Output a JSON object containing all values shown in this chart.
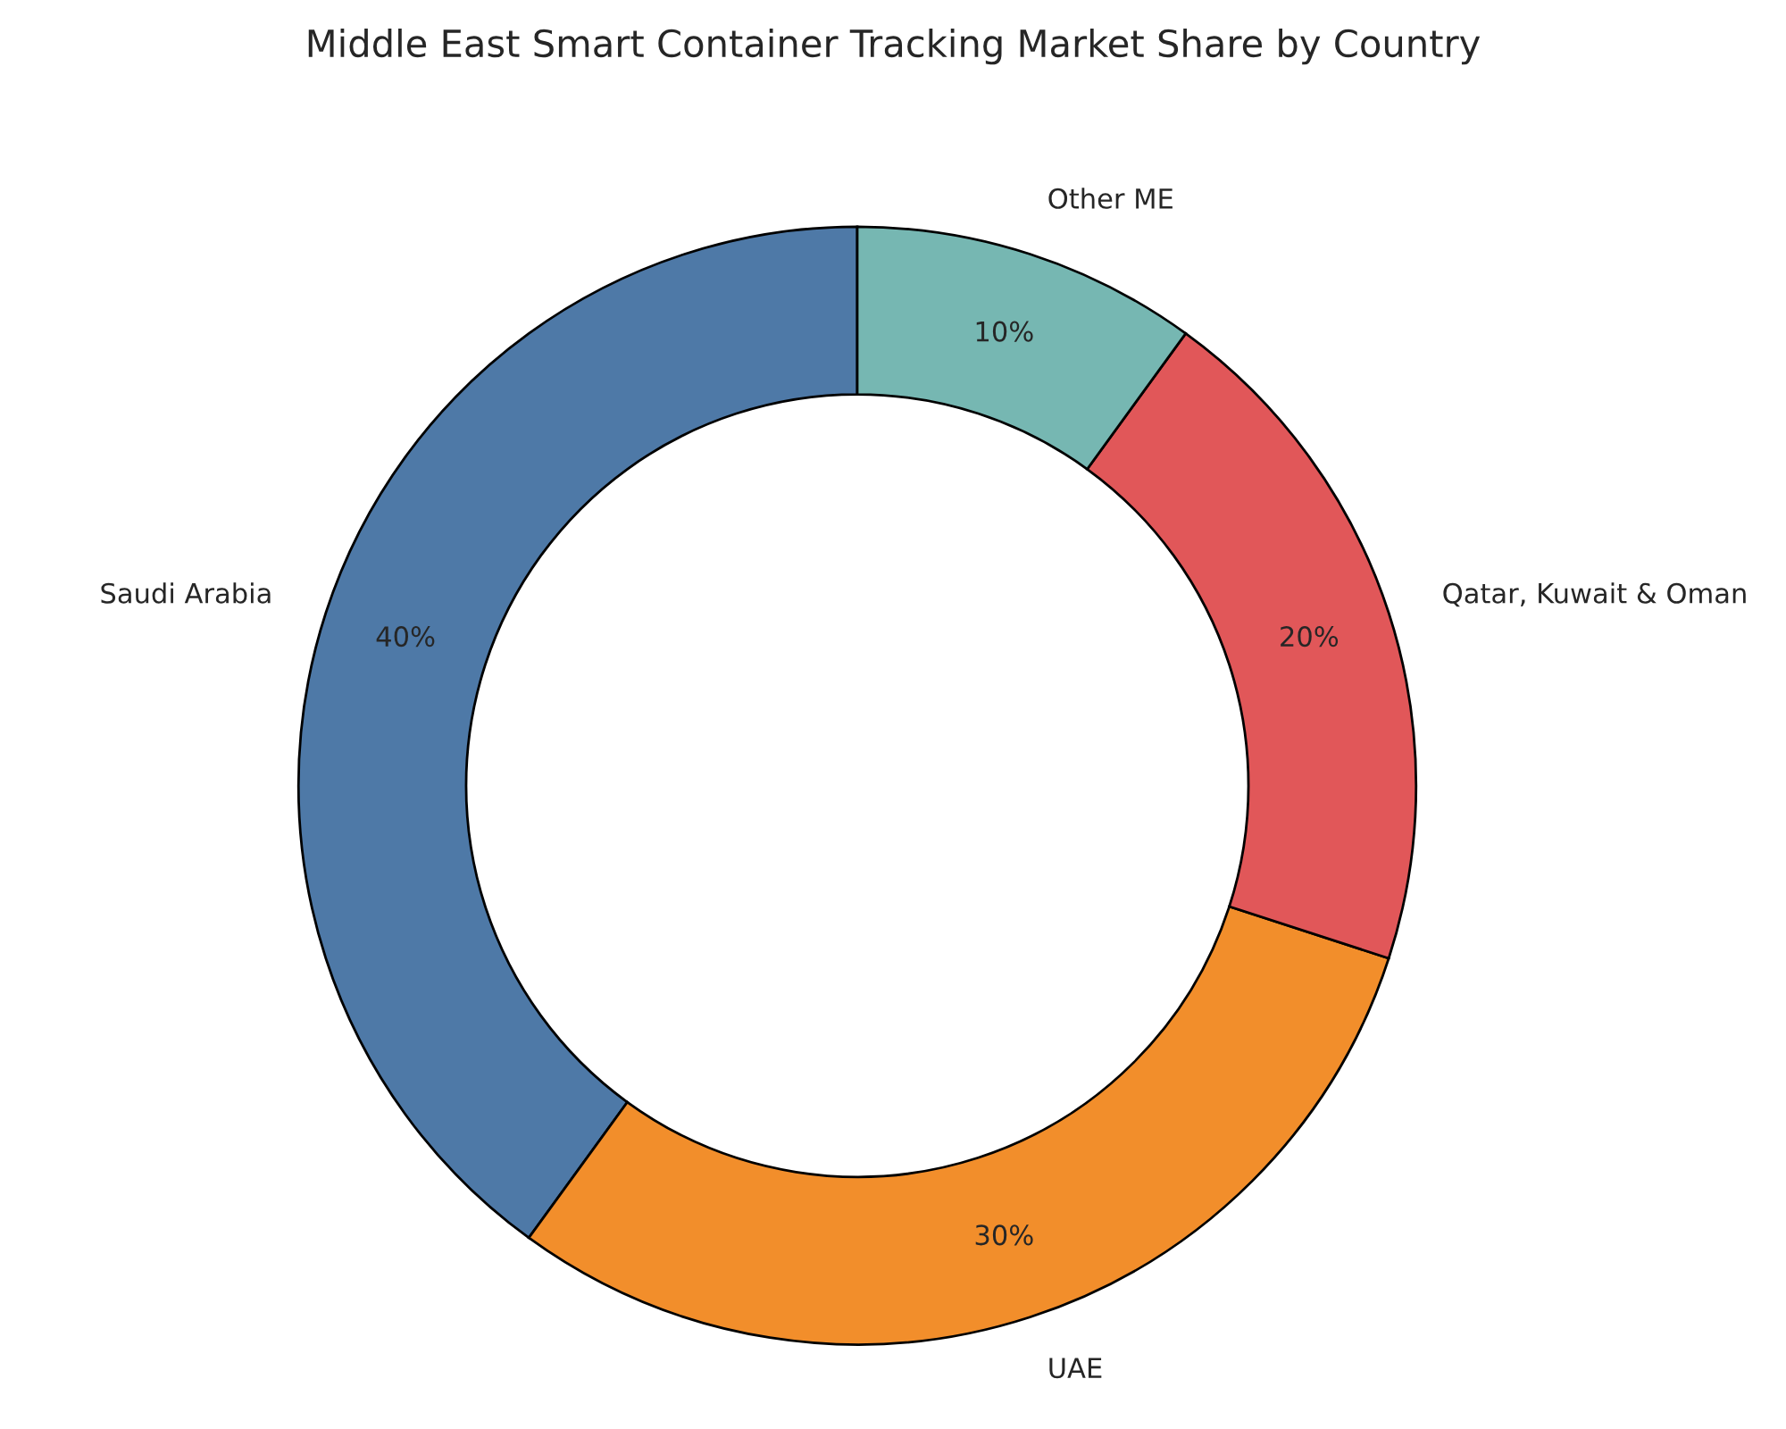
{
  "chart_data": {
    "type": "donut",
    "title": "Middle East Smart Container Tracking Market Share by Country",
    "categories": [
      "Saudi Arabia",
      "UAE",
      "Qatar, Kuwait & Oman",
      "Other ME"
    ],
    "values": [
      40,
      30,
      20,
      10
    ],
    "value_labels": [
      "40%",
      "30%",
      "20%",
      "10%"
    ],
    "colors": [
      "#4e79a7",
      "#f28e2b",
      "#e15759",
      "#76b7b2"
    ]
  }
}
